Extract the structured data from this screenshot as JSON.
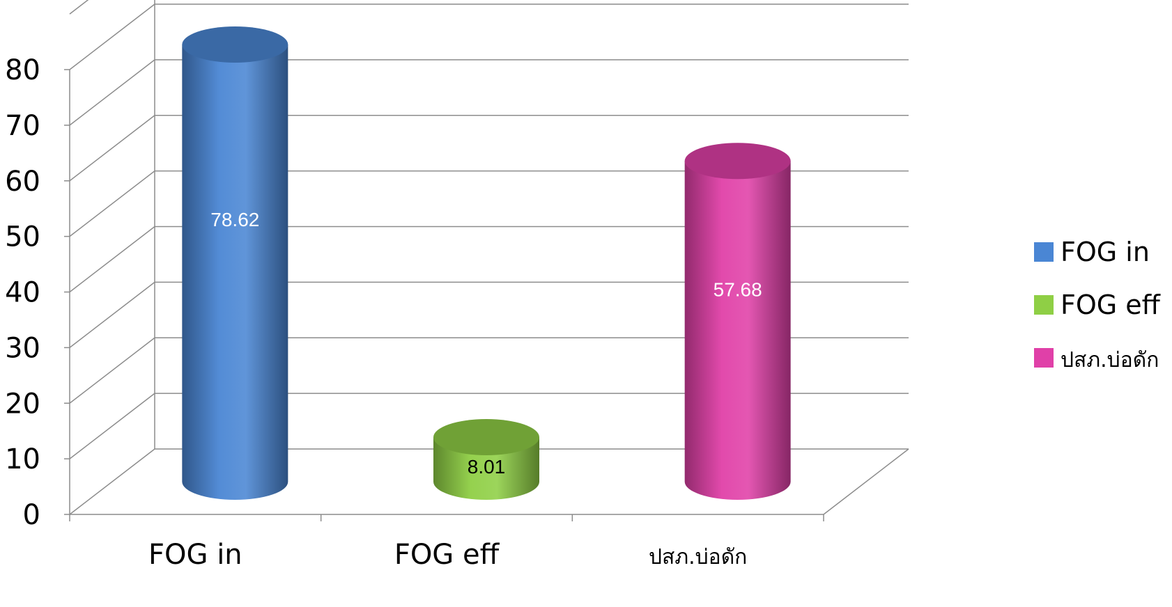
{
  "chart_data": {
    "type": "bar",
    "style": "3d-cylinder",
    "categories": [
      "FOG in",
      "FOG eff",
      "ปสภ.บ่อดัก"
    ],
    "values": [
      78.62,
      8.01,
      57.68
    ],
    "data_labels": [
      "78.62",
      "8.01",
      "57.68"
    ],
    "colors": [
      "#4a86d4",
      "#8fcf45",
      "#e040a8"
    ],
    "legend": {
      "position": "right",
      "entries": [
        "FOG in",
        "FOG eff",
        "ปสภ.บ่อดัก"
      ]
    },
    "y_ticks": [
      "0",
      "10",
      "20",
      "30",
      "40",
      "50",
      "60",
      "70",
      "80"
    ],
    "ylim": [
      0,
      80
    ],
    "grid": true
  }
}
